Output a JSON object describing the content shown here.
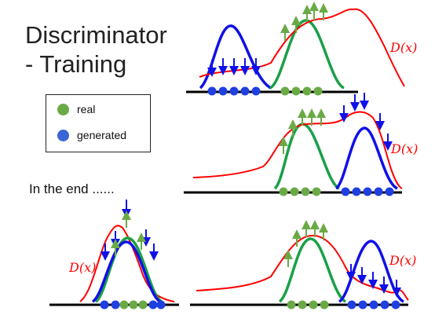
{
  "title": "Discriminator\n- Training",
  "legend": {
    "items": [
      {
        "label": "real",
        "color": "#6aaa46"
      },
      {
        "label": "generated",
        "color": "#3a66d6"
      }
    ]
  },
  "end_text": "In the end ......",
  "discriminator_label": "D(x)",
  "colors": {
    "discriminator": "#ff0000",
    "real": "#1aa048",
    "generated": "#1010e8",
    "real_dot": "#6aaa46",
    "generated_dot": "#1f3fe0",
    "up_arrow": "#6aaa46",
    "down_arrow": "#1010e8",
    "axis": "#000000"
  },
  "panels": [
    {
      "id": "panel-top",
      "real_points": 4,
      "generated_points": 5
    },
    {
      "id": "panel-middle",
      "real_points": 4,
      "generated_points": 5
    },
    {
      "id": "panel-bottom-left",
      "real_points": 3,
      "generated_points": 4
    },
    {
      "id": "panel-bottom-right",
      "real_points": 4,
      "generated_points": 5
    }
  ]
}
